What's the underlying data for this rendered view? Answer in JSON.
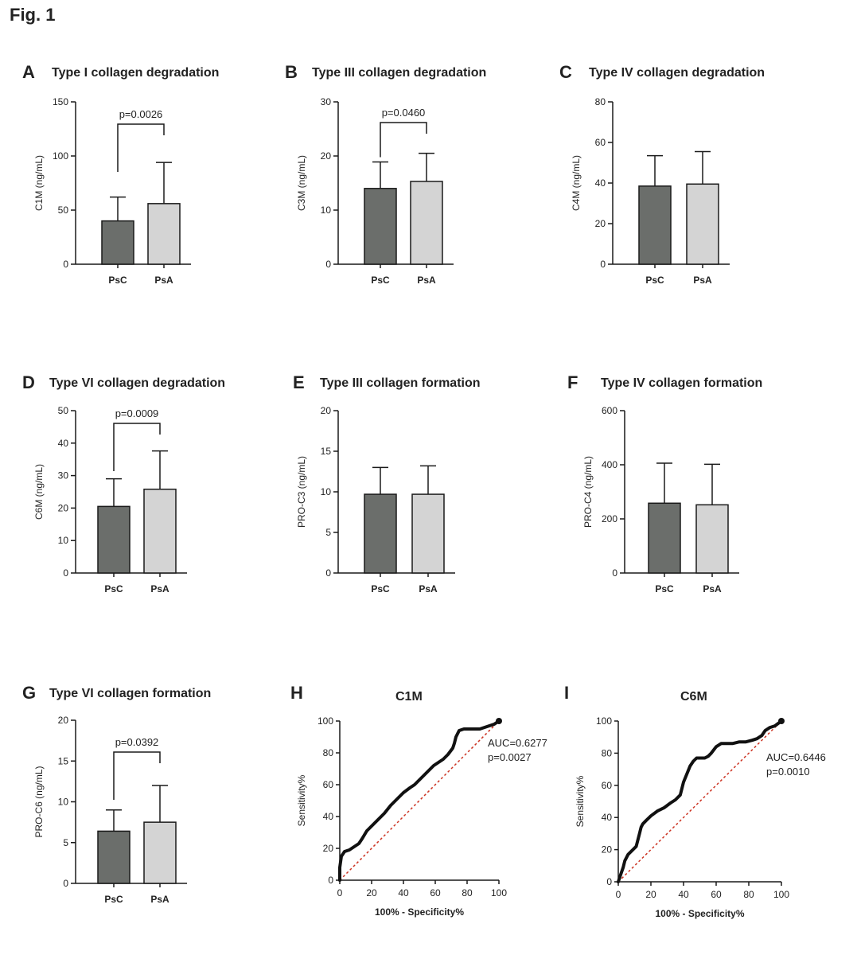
{
  "figure_title": "Fig. 1",
  "colors": {
    "psc": "#6b6e6b",
    "psa": "#d4d4d4",
    "stroke": "#1a1a1a",
    "roc_line": "#111111",
    "diag": "#cc3322"
  },
  "chart_data": [
    {
      "id": "A",
      "type": "bar",
      "letter": "A",
      "title": "Type I collagen degradation",
      "ylabel": "C1M (ng/mL)",
      "xlabel": "",
      "categories": [
        "PsC",
        "PsA"
      ],
      "values": [
        40,
        56
      ],
      "errors": [
        22,
        38
      ],
      "ylim": [
        0,
        150
      ],
      "yticks": [
        0,
        50,
        100,
        150
      ],
      "pvalue": "p=0.0026"
    },
    {
      "id": "B",
      "type": "bar",
      "letter": "B",
      "title": "Type III collagen degradation",
      "ylabel": "C3M (ng/mL)",
      "xlabel": "",
      "categories": [
        "PsC",
        "PsA"
      ],
      "values": [
        14,
        15.3
      ],
      "errors": [
        4.9,
        5.2
      ],
      "ylim": [
        0,
        30
      ],
      "yticks": [
        0,
        10,
        20,
        30
      ],
      "pvalue": "p=0.0460"
    },
    {
      "id": "C",
      "type": "bar",
      "letter": "C",
      "title": "Type IV collagen degradation",
      "ylabel": "C4M (ng/mL)",
      "xlabel": "",
      "categories": [
        "PsC",
        "PsA"
      ],
      "values": [
        38.5,
        39.5
      ],
      "errors": [
        15,
        16
      ],
      "ylim": [
        0,
        80
      ],
      "yticks": [
        0,
        20,
        40,
        60,
        80
      ],
      "pvalue": ""
    },
    {
      "id": "D",
      "type": "bar",
      "letter": "D",
      "title": "Type VI collagen degradation",
      "ylabel": "C6M (ng/mL)",
      "xlabel": "",
      "categories": [
        "PsC",
        "PsA"
      ],
      "values": [
        20.5,
        25.8
      ],
      "errors": [
        8.5,
        11.8
      ],
      "ylim": [
        0,
        50
      ],
      "yticks": [
        0,
        10,
        20,
        30,
        40,
        50
      ],
      "pvalue": "p=0.0009"
    },
    {
      "id": "E",
      "type": "bar",
      "letter": "E",
      "title": "Type III collagen formation",
      "ylabel": "PRO-C3 (ng/mL)",
      "xlabel": "",
      "categories": [
        "PsC",
        "PsA"
      ],
      "values": [
        9.7,
        9.7
      ],
      "errors": [
        3.3,
        3.5
      ],
      "ylim": [
        0,
        20
      ],
      "yticks": [
        0,
        5,
        10,
        15,
        20
      ],
      "pvalue": ""
    },
    {
      "id": "F",
      "type": "bar",
      "letter": "F",
      "title": "Type IV collagen formation",
      "ylabel": "PRO-C4 (ng/mL)",
      "xlabel": "",
      "categories": [
        "PsC",
        "PsA"
      ],
      "values": [
        258,
        252
      ],
      "errors": [
        148,
        150
      ],
      "ylim": [
        0,
        600
      ],
      "yticks": [
        0,
        200,
        400,
        600
      ],
      "pvalue": ""
    },
    {
      "id": "G",
      "type": "bar",
      "letter": "G",
      "title": "Type VI collagen formation",
      "ylabel": "PRO-C6 (ng/mL)",
      "xlabel": "",
      "categories": [
        "PsC",
        "PsA"
      ],
      "values": [
        6.4,
        7.5
      ],
      "errors": [
        2.6,
        4.5
      ],
      "ylim": [
        0,
        20
      ],
      "yticks": [
        0,
        5,
        10,
        15,
        20
      ],
      "pvalue": "p=0.0392"
    },
    {
      "id": "H",
      "type": "line",
      "letter": "H",
      "title": "C1M",
      "xlabel": "100% - Specificity%",
      "ylabel": "Sensitivity%",
      "xlim": [
        0,
        100
      ],
      "ylim": [
        0,
        100
      ],
      "xticks": [
        0,
        20,
        40,
        60,
        80,
        100
      ],
      "yticks": [
        0,
        20,
        40,
        60,
        80,
        100
      ],
      "auc": "AUC=0.6277",
      "pvalue": "p=0.0027",
      "x": [
        0,
        0,
        1,
        3,
        6,
        9,
        12,
        14,
        17,
        20,
        24,
        28,
        32,
        36,
        40,
        44,
        47,
        50,
        53,
        56,
        59,
        62,
        65,
        68,
        71,
        72,
        73,
        75,
        78,
        82,
        86,
        88,
        91,
        94,
        97,
        100
      ],
      "y": [
        0,
        8,
        15,
        18,
        19,
        21,
        23,
        26,
        31,
        34,
        38,
        42,
        47,
        51,
        55,
        58,
        60,
        63,
        66,
        69,
        72,
        74,
        76,
        79,
        83,
        86,
        90,
        94,
        95,
        95,
        95,
        95,
        96,
        97,
        98,
        100
      ]
    },
    {
      "id": "I",
      "type": "line",
      "letter": "I",
      "title": "C6M",
      "xlabel": "100% - Specificity%",
      "ylabel": "Sensitivity%",
      "xlim": [
        0,
        100
      ],
      "ylim": [
        0,
        100
      ],
      "xticks": [
        0,
        20,
        40,
        60,
        80,
        100
      ],
      "yticks": [
        0,
        20,
        40,
        60,
        80,
        100
      ],
      "auc": "AUC=0.6446",
      "pvalue": "p=0.0010",
      "x": [
        0,
        1,
        2,
        3,
        4,
        6,
        9,
        11,
        13,
        14,
        15,
        17,
        20,
        24,
        28,
        32,
        35,
        38,
        40,
        42,
        44,
        46,
        48,
        50,
        53,
        55,
        57,
        60,
        63,
        66,
        70,
        74,
        78,
        82,
        85,
        88,
        90,
        93,
        96,
        100
      ],
      "y": [
        0,
        3,
        6,
        9,
        13,
        17,
        20,
        22,
        30,
        34,
        36,
        38,
        41,
        44,
        46,
        49,
        51,
        54,
        62,
        67,
        72,
        75,
        77,
        77,
        77,
        78,
        80,
        84,
        86,
        86,
        86,
        87,
        87,
        88,
        89,
        91,
        94,
        96,
        97,
        100
      ]
    }
  ]
}
